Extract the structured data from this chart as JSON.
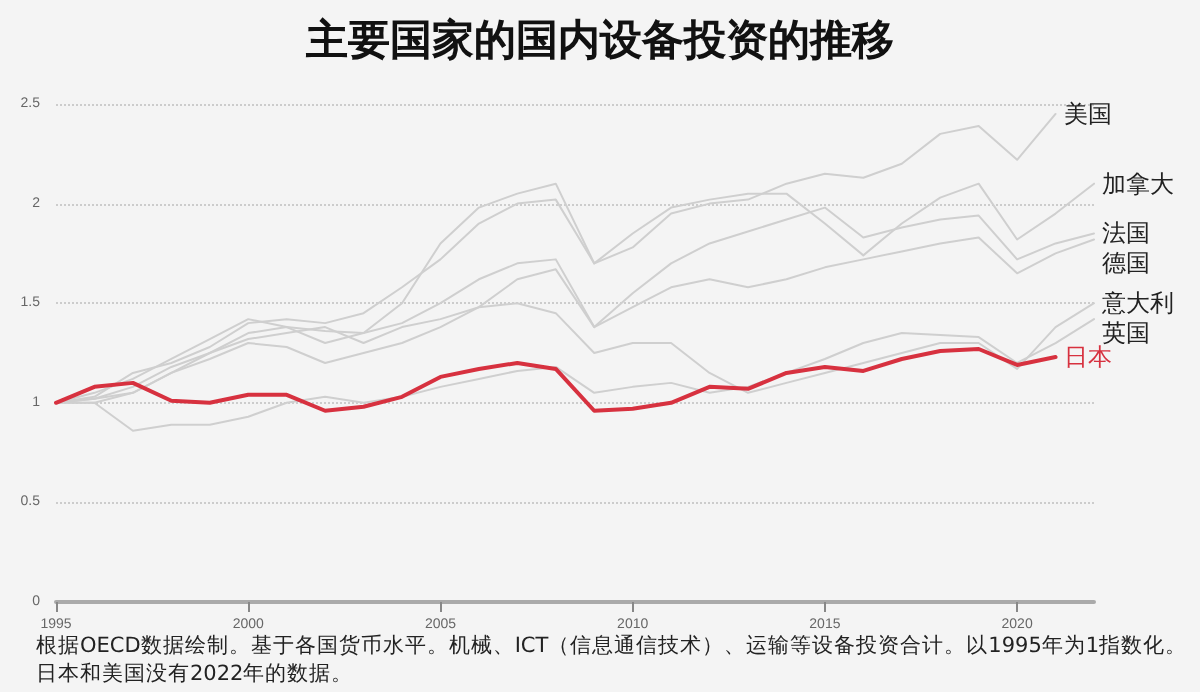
{
  "chart_data": {
    "type": "line",
    "title": "主要国家的国内设备投资的推移",
    "x": [
      1995,
      1996,
      1997,
      1998,
      1999,
      2000,
      2001,
      2002,
      2003,
      2004,
      2005,
      2006,
      2007,
      2008,
      2009,
      2010,
      2011,
      2012,
      2013,
      2014,
      2015,
      2016,
      2017,
      2018,
      2019,
      2020,
      2021,
      2022
    ],
    "series": [
      {
        "name": "美国",
        "color": "#cfcfcf",
        "values": [
          1.0,
          1.05,
          1.12,
          1.22,
          1.32,
          1.42,
          1.38,
          1.3,
          1.35,
          1.5,
          1.8,
          1.98,
          2.05,
          2.1,
          1.7,
          1.78,
          1.95,
          2.0,
          2.02,
          2.1,
          2.15,
          2.13,
          2.2,
          2.35,
          2.39,
          2.22,
          2.45,
          null
        ]
      },
      {
        "name": "加拿大",
        "color": "#cfcfcf",
        "values": [
          1.0,
          1.03,
          1.15,
          1.2,
          1.28,
          1.4,
          1.42,
          1.4,
          1.45,
          1.58,
          1.72,
          1.9,
          2.0,
          2.02,
          1.7,
          1.85,
          1.98,
          2.02,
          2.05,
          2.05,
          1.9,
          1.74,
          1.9,
          2.03,
          2.1,
          1.82,
          1.95,
          2.1
        ]
      },
      {
        "name": "法国",
        "color": "#cfcfcf",
        "values": [
          1.0,
          1.02,
          1.05,
          1.15,
          1.25,
          1.35,
          1.38,
          1.36,
          1.35,
          1.4,
          1.5,
          1.62,
          1.7,
          1.72,
          1.38,
          1.55,
          1.7,
          1.8,
          1.86,
          1.92,
          1.98,
          1.83,
          1.88,
          1.92,
          1.94,
          1.72,
          1.8,
          1.85
        ]
      },
      {
        "name": "德国",
        "color": "#cfcfcf",
        "values": [
          1.0,
          1.0,
          1.05,
          1.15,
          1.22,
          1.3,
          1.28,
          1.2,
          1.25,
          1.3,
          1.38,
          1.48,
          1.62,
          1.67,
          1.38,
          1.48,
          1.58,
          1.62,
          1.58,
          1.62,
          1.68,
          1.72,
          1.76,
          1.8,
          1.83,
          1.65,
          1.75,
          1.82
        ]
      },
      {
        "name": "意大利",
        "color": "#cfcfcf",
        "values": [
          1.0,
          1.02,
          1.08,
          1.18,
          1.25,
          1.32,
          1.35,
          1.38,
          1.3,
          1.38,
          1.42,
          1.48,
          1.5,
          1.45,
          1.25,
          1.3,
          1.3,
          1.15,
          1.05,
          1.1,
          1.15,
          1.2,
          1.25,
          1.3,
          1.3,
          1.17,
          1.38,
          1.5
        ]
      },
      {
        "name": "英国",
        "color": "#cfcfcf",
        "values": [
          1.0,
          1.0,
          0.86,
          0.89,
          0.89,
          0.93,
          1.0,
          1.03,
          1.0,
          1.03,
          1.08,
          1.12,
          1.16,
          1.18,
          1.05,
          1.08,
          1.1,
          1.05,
          1.08,
          1.15,
          1.22,
          1.3,
          1.35,
          1.34,
          1.33,
          1.2,
          1.3,
          1.42
        ]
      },
      {
        "name": "日本",
        "color": "#d7313f",
        "values": [
          1.0,
          1.08,
          1.1,
          1.01,
          1.0,
          1.04,
          1.04,
          0.96,
          0.98,
          1.03,
          1.13,
          1.17,
          1.2,
          1.17,
          0.96,
          0.97,
          1.0,
          1.08,
          1.07,
          1.15,
          1.18,
          1.16,
          1.22,
          1.26,
          1.27,
          1.19,
          1.23,
          null
        ]
      }
    ],
    "xlim": [
      1995,
      2022
    ],
    "xticks": [
      1995,
      2000,
      2005,
      2010,
      2015,
      2020
    ],
    "ylim": [
      0,
      2.5
    ],
    "yticks": [
      0,
      0.5,
      1,
      1.5,
      2,
      2.5
    ],
    "grid": "y",
    "legend": false,
    "marker": "none",
    "line_style": "solid",
    "annotations": [
      "根据OECD数据绘制。基于各国货币水平。机械、ICT（信息通信技术）、运输等设备投资合计。以1995年为1指数化。",
      "日本和美国没有2022年的数据。"
    ]
  }
}
